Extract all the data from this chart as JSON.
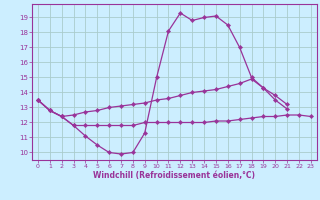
{
  "xlabel": "Windchill (Refroidissement éolien,°C)",
  "bg_color": "#cceeff",
  "grid_color": "#aacccc",
  "line_color": "#993399",
  "ylim": [
    9.5,
    19.9
  ],
  "xlim": [
    -0.5,
    23.5
  ],
  "yticks": [
    10,
    11,
    12,
    13,
    14,
    15,
    16,
    17,
    18,
    19
  ],
  "xticks": [
    0,
    1,
    2,
    3,
    4,
    5,
    6,
    7,
    8,
    9,
    10,
    11,
    12,
    13,
    14,
    15,
    16,
    17,
    18,
    19,
    20,
    21,
    22,
    23
  ],
  "line1_x": [
    0,
    1,
    2,
    3,
    4,
    5,
    6,
    7,
    8,
    9,
    10,
    11,
    12,
    13,
    14,
    15,
    16,
    17,
    18,
    19,
    20,
    21
  ],
  "line1_y": [
    13.5,
    12.8,
    12.4,
    11.8,
    11.1,
    10.5,
    10.0,
    9.9,
    10.0,
    11.3,
    15.0,
    18.1,
    19.3,
    18.8,
    19.0,
    19.1,
    18.5,
    17.0,
    15.0,
    14.3,
    13.5,
    12.9
  ],
  "line2_x": [
    0,
    1,
    2,
    3,
    4,
    5,
    6,
    7,
    8,
    9,
    10,
    11,
    12,
    13,
    14,
    15,
    16,
    17,
    18,
    19,
    20,
    21
  ],
  "line2_y": [
    13.5,
    12.8,
    12.4,
    12.5,
    12.7,
    12.8,
    13.0,
    13.1,
    13.2,
    13.3,
    13.5,
    13.6,
    13.8,
    14.0,
    14.1,
    14.2,
    14.4,
    14.6,
    14.9,
    14.3,
    13.8,
    13.2
  ],
  "line3_x": [
    0,
    1,
    2,
    3,
    4,
    5,
    6,
    7,
    8,
    9,
    10,
    11,
    12,
    13,
    14,
    15,
    16,
    17,
    18,
    19,
    20,
    21,
    22,
    23
  ],
  "line3_y": [
    13.5,
    12.8,
    12.4,
    11.8,
    11.8,
    11.8,
    11.8,
    11.8,
    11.8,
    12.0,
    12.0,
    12.0,
    12.0,
    12.0,
    12.0,
    12.1,
    12.1,
    12.2,
    12.3,
    12.4,
    12.4,
    12.5,
    12.5,
    12.4
  ],
  "xlabel_fontsize": 5.5,
  "tick_fontsize": 5,
  "marker_size": 2.2
}
